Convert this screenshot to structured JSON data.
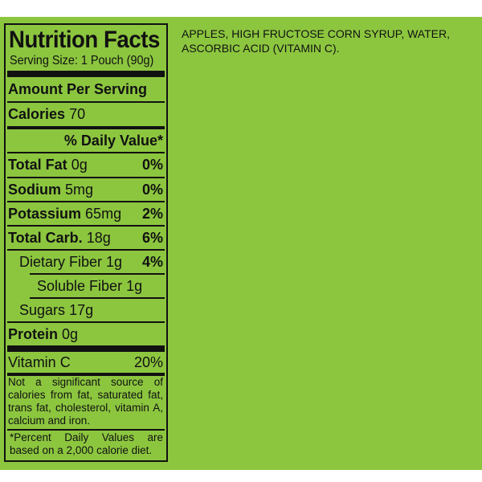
{
  "nutrition": {
    "title": "Nutrition Facts",
    "serving_size": "Serving Size: 1 Pouch (90g)",
    "amount_per_serving": "Amount Per Serving",
    "calories_label": "Calories",
    "calories_value": "70",
    "daily_value_header": "% Daily Value*",
    "rows": [
      {
        "label": "Total Fat",
        "amount": "0g",
        "dv": "0%"
      },
      {
        "label": "Sodium",
        "amount": "5mg",
        "dv": "0%"
      },
      {
        "label": "Potassium",
        "amount": "65mg",
        "dv": "2%"
      },
      {
        "label": "Total Carb.",
        "amount": "18g",
        "dv": "6%"
      },
      {
        "label": "Dietary Fiber",
        "amount": "1g",
        "dv": "4%"
      },
      {
        "label": "Soluble Fiber",
        "amount": "1g",
        "dv": ""
      },
      {
        "label": "Sugars",
        "amount": "17g",
        "dv": ""
      },
      {
        "label": "Protein",
        "amount": "0g",
        "dv": ""
      }
    ],
    "vitamin_c_label": "Vitamin C",
    "vitamin_c_dv": "20%",
    "note_insignificant": "Not a significant source of calories from fat, saturated fat, trans fat, cholesterol, vitamin A, calcium and iron.",
    "note_percent": "*Percent Daily Values are based on a 2,000 calorie diet."
  },
  "ingredients": "APPLES, HIGH FRUCTOSE CORN SYRUP, WATER, ASCORBIC ACID (VITAMIN C).",
  "colors": {
    "panel": "#8cc63f",
    "ink": "#111111"
  }
}
